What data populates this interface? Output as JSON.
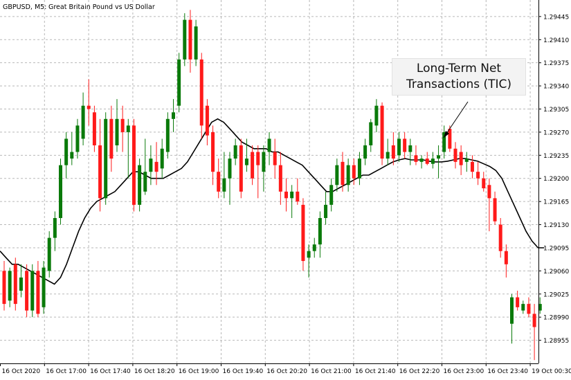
{
  "header": {
    "symbol": "GBPUSD, M5:",
    "description": "Great Britain Pound vs US Dollar"
  },
  "annotation": {
    "line1": "Long-Term Net",
    "line2": "Transactions (TIC)"
  },
  "colors": {
    "bull": "#0a7a0a",
    "bear": "#ff1a1a",
    "ma_line": "#000000",
    "grid": "#b7b7b7",
    "axis": "#000000",
    "text": "#000000"
  },
  "chart_data": {
    "type": "candlestick",
    "timeframe": "M5",
    "y_range": [
      1.2892,
      1.2947
    ],
    "y_ticks": [
      "1.29445",
      "1.29410",
      "1.29375",
      "1.29340",
      "1.29305",
      "1.29270",
      "1.29235",
      "1.29200",
      "1.29165",
      "1.29130",
      "1.29095",
      "1.29060",
      "1.29025",
      "1.28990",
      "1.28955"
    ],
    "x_ticks": [
      "16 Oct 2020",
      "16 Oct 17:00",
      "16 Oct 17:40",
      "16 Oct 18:20",
      "16 Oct 19:00",
      "16 Oct 19:40",
      "16 Oct 20:20",
      "16 Oct 21:00",
      "16 Oct 21:40",
      "16 Oct 22:20",
      "16 Oct 23:00",
      "16 Oct 23:40",
      "19 Oct 00:30"
    ],
    "moving_average": [
      1.2909,
      1.2908,
      1.2907,
      1.2907,
      1.29065,
      1.2906,
      1.29055,
      1.2905,
      1.29045,
      1.2904,
      1.2905,
      1.2907,
      1.29095,
      1.2912,
      1.2914,
      1.29155,
      1.29165,
      1.2917,
      1.29175,
      1.2918,
      1.2919,
      1.292,
      1.2921,
      1.2921,
      1.29205,
      1.292,
      1.292,
      1.292,
      1.29205,
      1.2921,
      1.29215,
      1.29225,
      1.2924,
      1.29255,
      1.2927,
      1.29285,
      1.2929,
      1.29285,
      1.29275,
      1.29265,
      1.29255,
      1.2925,
      1.29245,
      1.29245,
      1.29245,
      1.2924,
      1.2924,
      1.29235,
      1.2923,
      1.29225,
      1.2922,
      1.2921,
      1.292,
      1.2919,
      1.2918,
      1.2918,
      1.29185,
      1.2919,
      1.29195,
      1.292,
      1.29205,
      1.29205,
      1.2921,
      1.29215,
      1.2922,
      1.29225,
      1.29228,
      1.2923,
      1.29228,
      1.29228,
      1.29228,
      1.29226,
      1.29225,
      1.29225,
      1.29226,
      1.29228,
      1.2923,
      1.2923,
      1.29228,
      1.29226,
      1.29222,
      1.29218,
      1.29212,
      1.292,
      1.2918,
      1.2916,
      1.2914,
      1.2912,
      1.29105,
      1.29095,
      1.29095
    ],
    "candles": [
      {
        "o": 1.2906,
        "h": 1.29075,
        "l": 1.29,
        "c": 1.2901
      },
      {
        "o": 1.29015,
        "h": 1.29065,
        "l": 1.29005,
        "c": 1.2906
      },
      {
        "o": 1.2907,
        "h": 1.2908,
        "l": 1.29,
        "c": 1.2901
      },
      {
        "o": 1.2903,
        "h": 1.2907,
        "l": 1.2902,
        "c": 1.2905
      },
      {
        "o": 1.2906,
        "h": 1.2907,
        "l": 1.2899,
        "c": 1.29
      },
      {
        "o": 1.29,
        "h": 1.2907,
        "l": 1.2899,
        "c": 1.2906
      },
      {
        "o": 1.2906,
        "h": 1.29075,
        "l": 1.2899,
        "c": 1.28995
      },
      {
        "o": 1.29005,
        "h": 1.29075,
        "l": 1.28995,
        "c": 1.29065
      },
      {
        "o": 1.2906,
        "h": 1.2912,
        "l": 1.2905,
        "c": 1.2911
      },
      {
        "o": 1.2911,
        "h": 1.2915,
        "l": 1.2909,
        "c": 1.2914
      },
      {
        "o": 1.2914,
        "h": 1.2923,
        "l": 1.2913,
        "c": 1.2922
      },
      {
        "o": 1.2922,
        "h": 1.2927,
        "l": 1.292,
        "c": 1.2926
      },
      {
        "o": 1.2923,
        "h": 1.2927,
        "l": 1.2922,
        "c": 1.2924
      },
      {
        "o": 1.2924,
        "h": 1.2929,
        "l": 1.2923,
        "c": 1.2928
      },
      {
        "o": 1.2926,
        "h": 1.2933,
        "l": 1.2925,
        "c": 1.2931
      },
      {
        "o": 1.2931,
        "h": 1.2935,
        "l": 1.2928,
        "c": 1.29305
      },
      {
        "o": 1.293,
        "h": 1.2931,
        "l": 1.2924,
        "c": 1.2925
      },
      {
        "o": 1.2925,
        "h": 1.2929,
        "l": 1.2915,
        "c": 1.2917
      },
      {
        "o": 1.2917,
        "h": 1.293,
        "l": 1.2916,
        "c": 1.2929
      },
      {
        "o": 1.2929,
        "h": 1.2931,
        "l": 1.2921,
        "c": 1.2923
      },
      {
        "o": 1.2925,
        "h": 1.2932,
        "l": 1.2924,
        "c": 1.2929
      },
      {
        "o": 1.2929,
        "h": 1.2931,
        "l": 1.2924,
        "c": 1.2927
      },
      {
        "o": 1.2927,
        "h": 1.2929,
        "l": 1.292,
        "c": 1.2928
      },
      {
        "o": 1.2928,
        "h": 1.2929,
        "l": 1.2915,
        "c": 1.2916
      },
      {
        "o": 1.2916,
        "h": 1.2923,
        "l": 1.2915,
        "c": 1.2922
      },
      {
        "o": 1.2918,
        "h": 1.2926,
        "l": 1.29175,
        "c": 1.2921
      },
      {
        "o": 1.2921,
        "h": 1.2925,
        "l": 1.2919,
        "c": 1.2923
      },
      {
        "o": 1.29225,
        "h": 1.29255,
        "l": 1.2919,
        "c": 1.2921
      },
      {
        "o": 1.29215,
        "h": 1.2926,
        "l": 1.292,
        "c": 1.29245
      },
      {
        "o": 1.2924,
        "h": 1.293,
        "l": 1.2923,
        "c": 1.2929
      },
      {
        "o": 1.2929,
        "h": 1.2932,
        "l": 1.2927,
        "c": 1.293
      },
      {
        "o": 1.2931,
        "h": 1.2939,
        "l": 1.293,
        "c": 1.2938
      },
      {
        "o": 1.2938,
        "h": 1.2945,
        "l": 1.2937,
        "c": 1.2944
      },
      {
        "o": 1.2944,
        "h": 1.29455,
        "l": 1.2936,
        "c": 1.2938
      },
      {
        "o": 1.2938,
        "h": 1.2944,
        "l": 1.2937,
        "c": 1.2943
      },
      {
        "o": 1.2938,
        "h": 1.2939,
        "l": 1.2926,
        "c": 1.2928
      },
      {
        "o": 1.2931,
        "h": 1.2932,
        "l": 1.2925,
        "c": 1.29265
      },
      {
        "o": 1.2927,
        "h": 1.2928,
        "l": 1.2919,
        "c": 1.2921
      },
      {
        "o": 1.2921,
        "h": 1.2923,
        "l": 1.2917,
        "c": 1.2918
      },
      {
        "o": 1.2918,
        "h": 1.2924,
        "l": 1.2917,
        "c": 1.292
      },
      {
        "o": 1.292,
        "h": 1.2924,
        "l": 1.2916,
        "c": 1.2923
      },
      {
        "o": 1.2923,
        "h": 1.2926,
        "l": 1.2922,
        "c": 1.2925
      },
      {
        "o": 1.2925,
        "h": 1.2926,
        "l": 1.2917,
        "c": 1.2918
      },
      {
        "o": 1.2922,
        "h": 1.2926,
        "l": 1.2921,
        "c": 1.2923
      },
      {
        "o": 1.2924,
        "h": 1.2925,
        "l": 1.2919,
        "c": 1.292
      },
      {
        "o": 1.2924,
        "h": 1.2925,
        "l": 1.2917,
        "c": 1.2922
      },
      {
        "o": 1.2921,
        "h": 1.2925,
        "l": 1.2918,
        "c": 1.2924
      },
      {
        "o": 1.2924,
        "h": 1.2927,
        "l": 1.2922,
        "c": 1.2926
      },
      {
        "o": 1.2924,
        "h": 1.2926,
        "l": 1.292,
        "c": 1.2922
      },
      {
        "o": 1.2922,
        "h": 1.2924,
        "l": 1.2916,
        "c": 1.2918
      },
      {
        "o": 1.2918,
        "h": 1.292,
        "l": 1.2915,
        "c": 1.2917
      },
      {
        "o": 1.2917,
        "h": 1.2919,
        "l": 1.2914,
        "c": 1.2918
      },
      {
        "o": 1.2918,
        "h": 1.292,
        "l": 1.2916,
        "c": 1.29165
      },
      {
        "o": 1.2916,
        "h": 1.2917,
        "l": 1.2906,
        "c": 1.29075
      },
      {
        "o": 1.2908,
        "h": 1.291,
        "l": 1.2905,
        "c": 1.2909
      },
      {
        "o": 1.2909,
        "h": 1.2911,
        "l": 1.2908,
        "c": 1.291
      },
      {
        "o": 1.291,
        "h": 1.2915,
        "l": 1.2908,
        "c": 1.2914
      },
      {
        "o": 1.2914,
        "h": 1.2918,
        "l": 1.2913,
        "c": 1.2916
      },
      {
        "o": 1.2916,
        "h": 1.292,
        "l": 1.2915,
        "c": 1.2919
      },
      {
        "o": 1.2919,
        "h": 1.2923,
        "l": 1.2918,
        "c": 1.2922
      },
      {
        "o": 1.29225,
        "h": 1.2924,
        "l": 1.2918,
        "c": 1.2919
      },
      {
        "o": 1.2919,
        "h": 1.2923,
        "l": 1.2918,
        "c": 1.2922
      },
      {
        "o": 1.2922,
        "h": 1.2923,
        "l": 1.2919,
        "c": 1.292
      },
      {
        "o": 1.292,
        "h": 1.2924,
        "l": 1.2919,
        "c": 1.2923
      },
      {
        "o": 1.2923,
        "h": 1.2926,
        "l": 1.2922,
        "c": 1.2925
      },
      {
        "o": 1.2925,
        "h": 1.2929,
        "l": 1.2924,
        "c": 1.29285
      },
      {
        "o": 1.2928,
        "h": 1.2932,
        "l": 1.2927,
        "c": 1.2931
      },
      {
        "o": 1.2931,
        "h": 1.29315,
        "l": 1.2922,
        "c": 1.2923
      },
      {
        "o": 1.2923,
        "h": 1.2926,
        "l": 1.2922,
        "c": 1.2924
      },
      {
        "o": 1.2925,
        "h": 1.2927,
        "l": 1.2922,
        "c": 1.2923
      },
      {
        "o": 1.29235,
        "h": 1.2927,
        "l": 1.29225,
        "c": 1.2926
      },
      {
        "o": 1.2926,
        "h": 1.2927,
        "l": 1.2923,
        "c": 1.2924
      },
      {
        "o": 1.2924,
        "h": 1.2926,
        "l": 1.2922,
        "c": 1.2925
      },
      {
        "o": 1.29235,
        "h": 1.2925,
        "l": 1.2922,
        "c": 1.29225
      },
      {
        "o": 1.29225,
        "h": 1.29235,
        "l": 1.29215,
        "c": 1.2923
      },
      {
        "o": 1.2923,
        "h": 1.2924,
        "l": 1.2922,
        "c": 1.29222
      },
      {
        "o": 1.29222,
        "h": 1.2924,
        "l": 1.29215,
        "c": 1.2923
      },
      {
        "o": 1.2923,
        "h": 1.2925,
        "l": 1.292,
        "c": 1.29235
      },
      {
        "o": 1.2924,
        "h": 1.2928,
        "l": 1.2923,
        "c": 1.2927
      },
      {
        "o": 1.29275,
        "h": 1.2928,
        "l": 1.2924,
        "c": 1.29245
      },
      {
        "o": 1.29245,
        "h": 1.29255,
        "l": 1.29215,
        "c": 1.29225
      },
      {
        "o": 1.2924,
        "h": 1.2925,
        "l": 1.29205,
        "c": 1.2922
      },
      {
        "o": 1.29225,
        "h": 1.2924,
        "l": 1.2921,
        "c": 1.2923
      },
      {
        "o": 1.29225,
        "h": 1.29235,
        "l": 1.292,
        "c": 1.2921
      },
      {
        "o": 1.2921,
        "h": 1.29225,
        "l": 1.2919,
        "c": 1.292
      },
      {
        "o": 1.292,
        "h": 1.2921,
        "l": 1.2918,
        "c": 1.29185
      },
      {
        "o": 1.2919,
        "h": 1.292,
        "l": 1.2912,
        "c": 1.2917
      },
      {
        "o": 1.2917,
        "h": 1.2918,
        "l": 1.2913,
        "c": 1.29135
      },
      {
        "o": 1.2913,
        "h": 1.2914,
        "l": 1.2908,
        "c": 1.2909
      },
      {
        "o": 1.2909,
        "h": 1.291,
        "l": 1.2905,
        "c": 1.2907
      },
      {
        "o": 1.2898,
        "h": 1.29025,
        "l": 1.2895,
        "c": 1.2902
      },
      {
        "o": 1.2902,
        "h": 1.2903,
        "l": 1.29,
        "c": 1.29005
      },
      {
        "o": 1.29,
        "h": 1.29015,
        "l": 1.28995,
        "c": 1.2901
      },
      {
        "o": 1.2901,
        "h": 1.2902,
        "l": 1.2899,
        "c": 1.28995
      },
      {
        "o": 1.28995,
        "h": 1.2901,
        "l": 1.28925,
        "c": 1.28975
      },
      {
        "o": 1.29,
        "h": 1.2902,
        "l": 1.28995,
        "c": 1.2901
      }
    ]
  }
}
